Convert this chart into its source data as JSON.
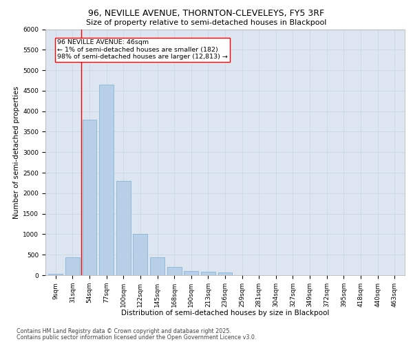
{
  "title1": "96, NEVILLE AVENUE, THORNTON-CLEVELEYS, FY5 3RF",
  "title2": "Size of property relative to semi-detached houses in Blackpool",
  "xlabel": "Distribution of semi-detached houses by size in Blackpool",
  "ylabel": "Number of semi-detached properties",
  "categories": [
    "9sqm",
    "31sqm",
    "54sqm",
    "77sqm",
    "100sqm",
    "122sqm",
    "145sqm",
    "168sqm",
    "190sqm",
    "213sqm",
    "236sqm",
    "259sqm",
    "281sqm",
    "304sqm",
    "327sqm",
    "349sqm",
    "372sqm",
    "395sqm",
    "418sqm",
    "440sqm",
    "463sqm"
  ],
  "values": [
    30,
    430,
    3800,
    4650,
    2300,
    1000,
    430,
    200,
    100,
    80,
    60,
    0,
    0,
    0,
    0,
    0,
    0,
    0,
    0,
    0,
    0
  ],
  "bar_color": "#b8cfe8",
  "bar_edge_color": "#7aafd4",
  "vline_x": 1.5,
  "vline_color": "red",
  "annotation_text": "96 NEVILLE AVENUE: 46sqm\n← 1% of semi-detached houses are smaller (182)\n98% of semi-detached houses are larger (12,813) →",
  "annotation_box_color": "white",
  "annotation_box_edge_color": "red",
  "ylim": [
    0,
    6000
  ],
  "yticks": [
    0,
    500,
    1000,
    1500,
    2000,
    2500,
    3000,
    3500,
    4000,
    4500,
    5000,
    5500,
    6000
  ],
  "grid_color": "#c8d4e4",
  "bg_color": "#dde5f0",
  "footer1": "Contains HM Land Registry data © Crown copyright and database right 2025.",
  "footer2": "Contains public sector information licensed under the Open Government Licence v3.0.",
  "title1_fontsize": 9,
  "title2_fontsize": 8,
  "axis_label_fontsize": 7.5,
  "tick_fontsize": 6.5,
  "footer_fontsize": 5.8,
  "annot_fontsize": 6.8
}
